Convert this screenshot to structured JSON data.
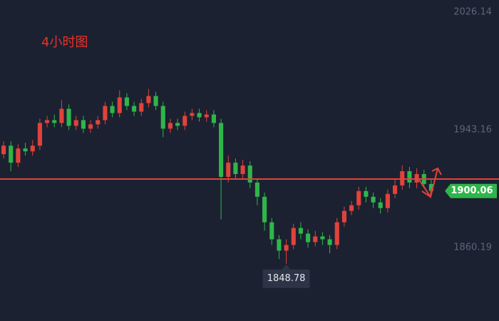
{
  "chart_data": {
    "type": "candlestick",
    "title": "4小时图",
    "open": [
      1926,
      1932,
      1920,
      1930,
      1928,
      1932,
      1948,
      1950,
      1948,
      1958,
      1946,
      1950,
      1944,
      1947,
      1950,
      1960,
      1955,
      1966,
      1960,
      1956,
      1962,
      1967,
      1960,
      1944,
      1948,
      1946,
      1953,
      1955,
      1952,
      1954,
      1948,
      1910,
      1920,
      1912,
      1918,
      1906,
      1896,
      1878,
      1866,
      1858,
      1862,
      1874,
      1870,
      1864,
      1868,
      1866,
      1862,
      1878,
      1886,
      1890,
      1900,
      1896,
      1892,
      1888,
      1898,
      1904,
      1914,
      1906,
      1912,
      1905
    ],
    "high": [
      1935,
      1935,
      1933,
      1934,
      1936,
      1951,
      1953,
      1954,
      1964,
      1961,
      1953,
      1953,
      1950,
      1953,
      1963,
      1963,
      1971,
      1969,
      1963,
      1965,
      1972,
      1970,
      1963,
      1951,
      1951,
      1956,
      1958,
      1958,
      1957,
      1957,
      1951,
      1925,
      1923,
      1922,
      1921,
      1909,
      1899,
      1881,
      1869,
      1866,
      1877,
      1878,
      1873,
      1872,
      1871,
      1869,
      1881,
      1889,
      1893,
      1903,
      1903,
      1899,
      1895,
      1901,
      1908,
      1918,
      1917,
      1916,
      1915,
      1908
    ],
    "low": [
      1923,
      1914,
      1917,
      1925,
      1925,
      1929,
      1945,
      1945,
      1945,
      1943,
      1943,
      1941,
      1941,
      1944,
      1947,
      1952,
      1952,
      1957,
      1953,
      1953,
      1959,
      1957,
      1938,
      1941,
      1943,
      1943,
      1950,
      1949,
      1949,
      1945,
      1880,
      1906,
      1908,
      1909,
      1902,
      1890,
      1872,
      1862,
      1852,
      1848.78,
      1859,
      1866,
      1860,
      1861,
      1862,
      1856,
      1859,
      1875,
      1883,
      1887,
      1892,
      1888,
      1884,
      1885,
      1895,
      1901,
      1902,
      1902,
      1902,
      1897
    ],
    "close": [
      1932,
      1920,
      1930,
      1928,
      1932,
      1948,
      1950,
      1948,
      1958,
      1946,
      1950,
      1944,
      1947,
      1950,
      1960,
      1955,
      1966,
      1960,
      1956,
      1962,
      1967,
      1960,
      1944,
      1948,
      1946,
      1953,
      1955,
      1952,
      1954,
      1948,
      1910,
      1920,
      1912,
      1918,
      1906,
      1896,
      1878,
      1866,
      1858,
      1862,
      1874,
      1870,
      1864,
      1868,
      1866,
      1862,
      1878,
      1886,
      1890,
      1900,
      1896,
      1892,
      1888,
      1898,
      1904,
      1914,
      1906,
      1912,
      1905,
      1900.06
    ],
    "up_color": "#e0433b",
    "down_color": "#2fb64a",
    "level": 1908.5,
    "level_color": "#e0433b",
    "last_price": 1900.06,
    "last_price_color": "#2fb64a",
    "low_label": 1848.78,
    "ylim": [
      1808.4,
      2034.7
    ],
    "yticks": [
      2026.14,
      1943.16,
      1860.19
    ]
  }
}
